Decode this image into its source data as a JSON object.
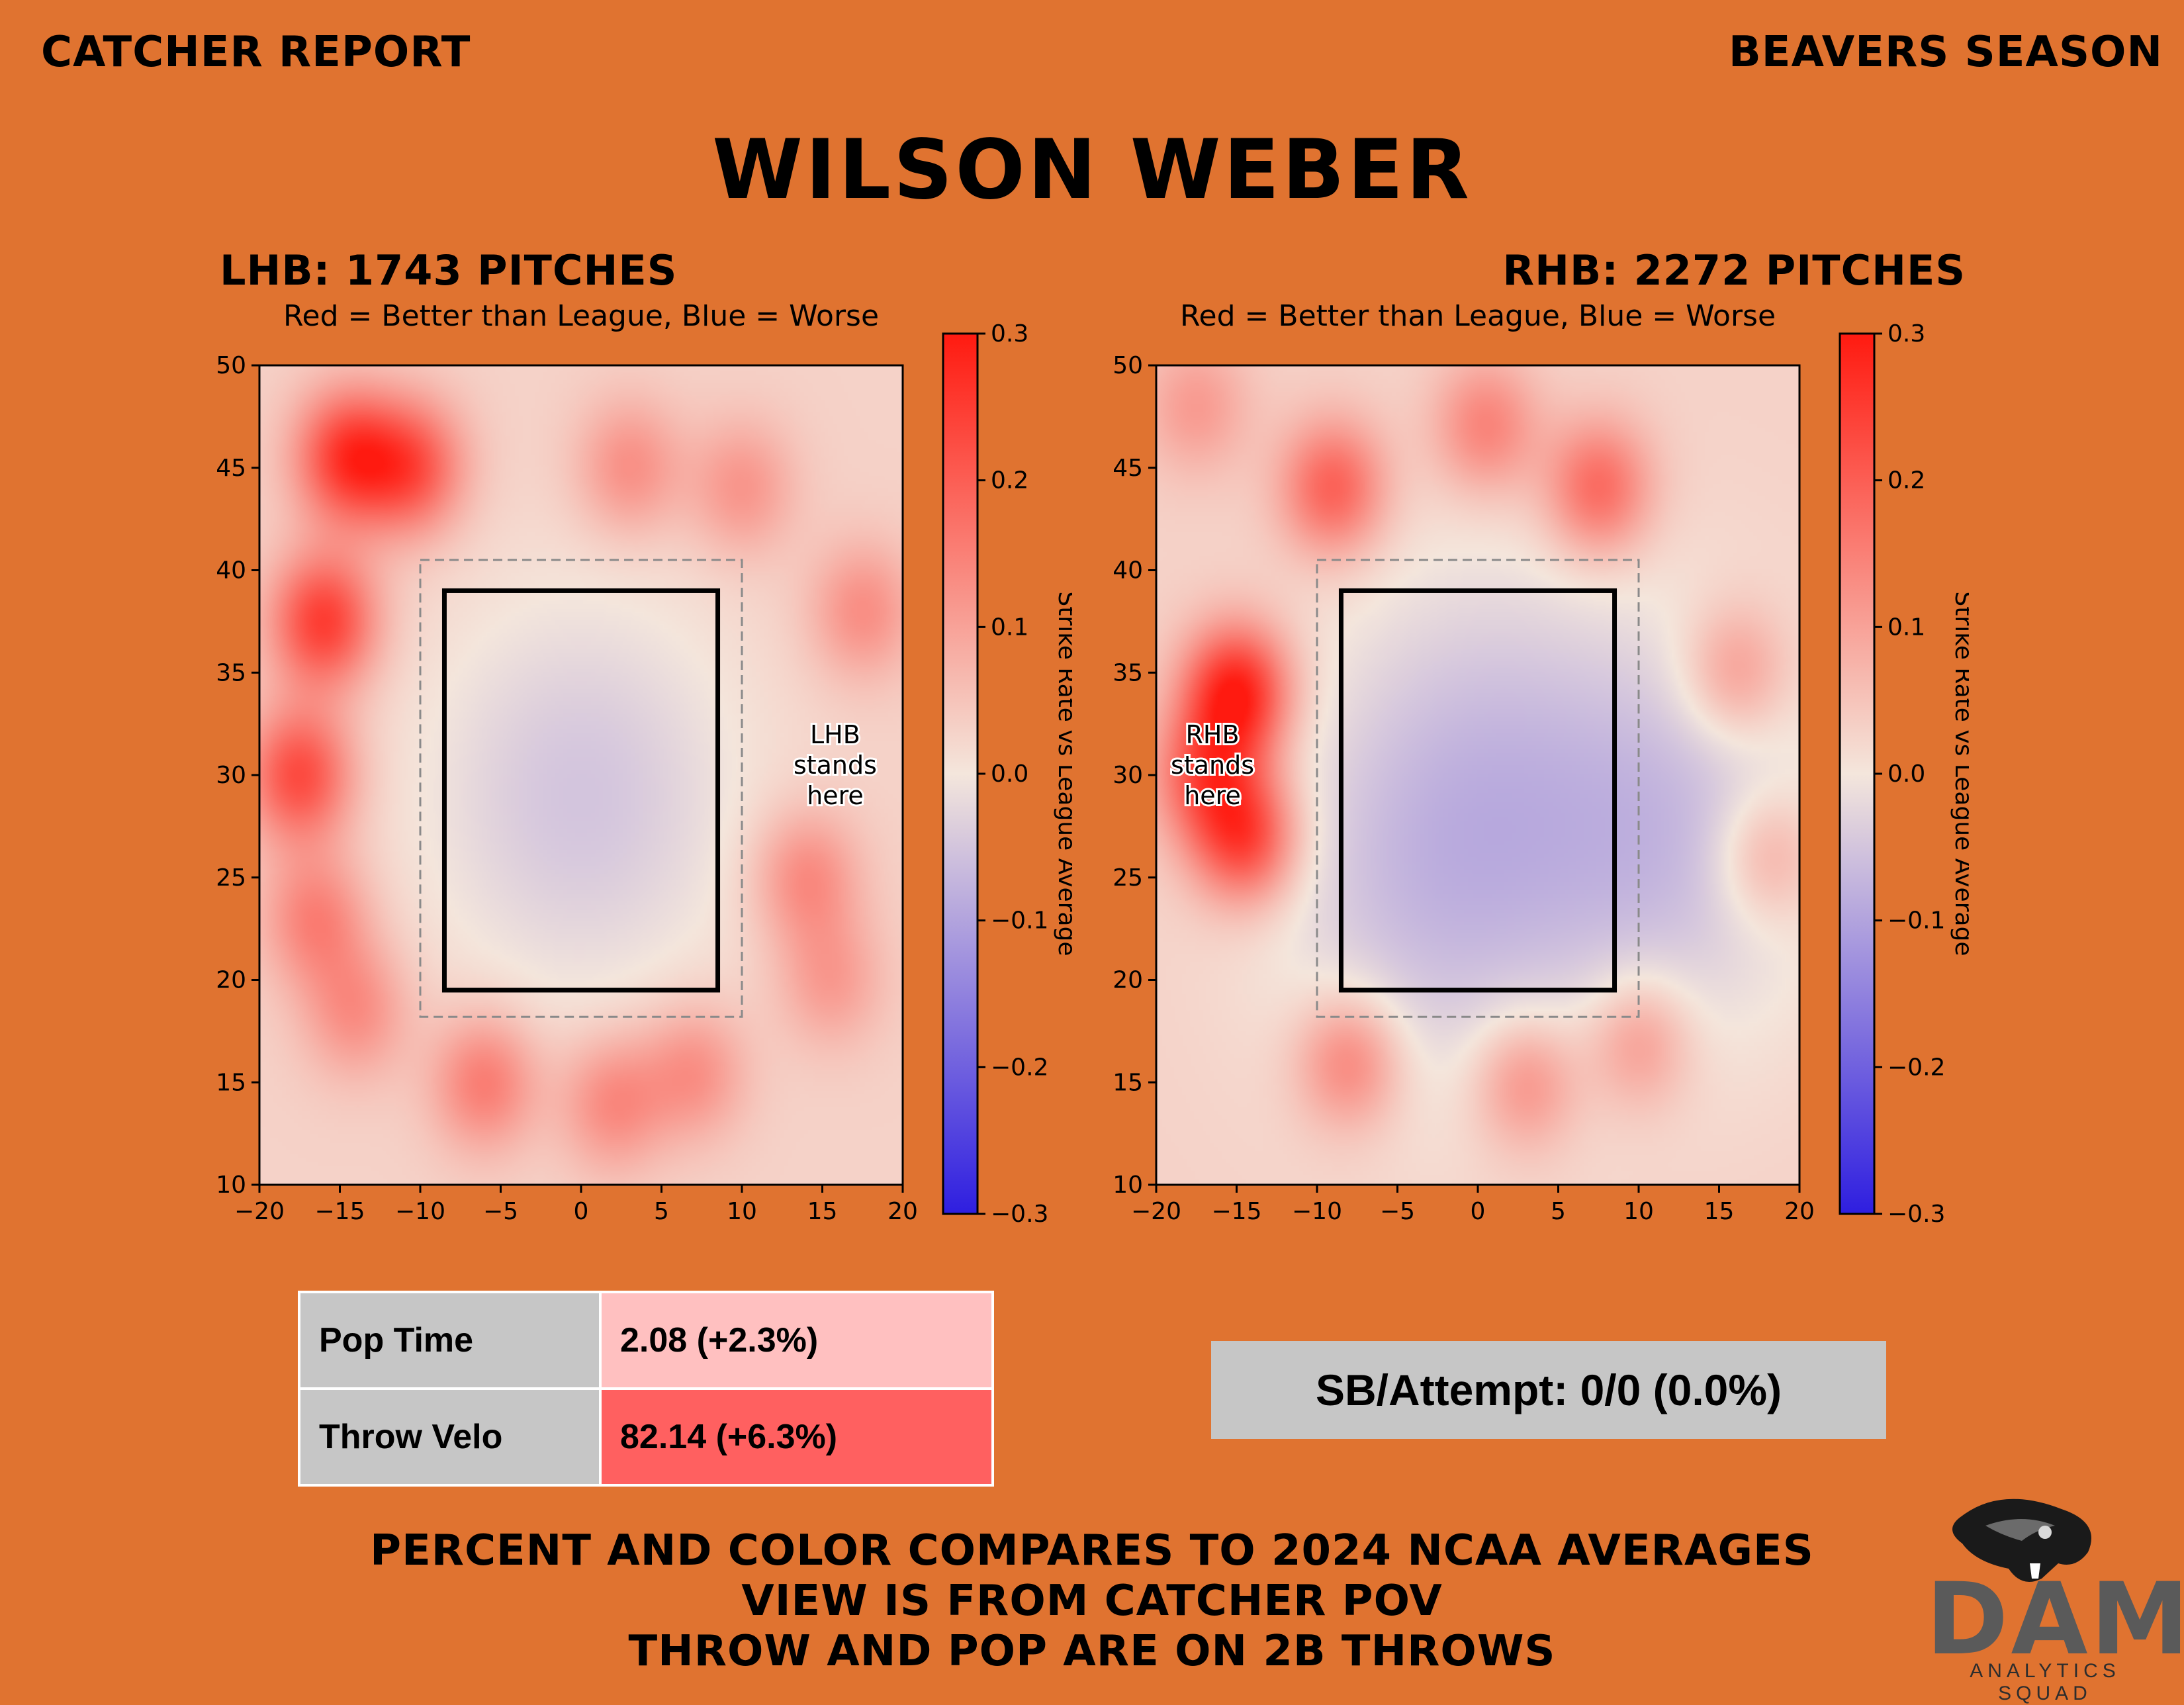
{
  "header": {
    "left": "CATCHER REPORT",
    "right": "BEAVERS SEASON"
  },
  "player_name": "WILSON WEBER",
  "left_panel": {
    "heading": "LHB: 1743 PITCHES"
  },
  "right_panel": {
    "heading": "RHB: 2272 PITCHES"
  },
  "chart_data": [
    {
      "type": "heatmap",
      "title": "Red = Better than League, Blue = Worse",
      "colorbar_label": "Strike Rate vs League Average",
      "xlim": [
        -20,
        20
      ],
      "ylim": [
        10,
        50
      ],
      "xticks": [
        -20,
        -15,
        -10,
        -5,
        0,
        5,
        10,
        15,
        20
      ],
      "yticks": [
        10,
        15,
        20,
        25,
        30,
        35,
        40,
        45,
        50
      ],
      "colorbar_range": [
        -0.3,
        0.3
      ],
      "colorbar_ticks": [
        "0.3",
        "0.2",
        "0.1",
        "0.0",
        "−0.1",
        "−0.2",
        "−0.3"
      ],
      "x_tick_labels": [
        "−20",
        "−15",
        "−10",
        "−5",
        "0",
        "5",
        "10",
        "15",
        "20"
      ],
      "colormap": {
        "high": "#ff1a10",
        "mid": "#f4e6dc",
        "low": "#2e1ee0"
      },
      "strike_zone": {
        "x": [
          -8.5,
          8.5
        ],
        "y": [
          19.5,
          39
        ]
      },
      "shadow_zone": {
        "x": [
          -10,
          10
        ],
        "y": [
          18.2,
          40.5
        ]
      },
      "annotation": {
        "text": [
          "LHB",
          "stands",
          "here"
        ],
        "x": 15.8,
        "y": 30
      },
      "blobs": [
        {
          "x": -14.5,
          "y": 45.5,
          "value": 0.22
        },
        {
          "x": -10.5,
          "y": 45,
          "value": 0.18
        },
        {
          "x": -16,
          "y": 37.5,
          "value": 0.22
        },
        {
          "x": -17.5,
          "y": 30,
          "value": 0.2
        },
        {
          "x": -16.5,
          "y": 23,
          "value": 0.12
        },
        {
          "x": -14,
          "y": 18.5,
          "value": 0.1
        },
        {
          "x": -6,
          "y": 15,
          "value": 0.13
        },
        {
          "x": 2,
          "y": 14,
          "value": 0.11
        },
        {
          "x": 7,
          "y": 15.5,
          "value": 0.1
        },
        {
          "x": 14,
          "y": 25,
          "value": 0.11
        },
        {
          "x": 15.5,
          "y": 20,
          "value": 0.08
        },
        {
          "x": 17.5,
          "y": 38,
          "value": 0.1
        },
        {
          "x": 3,
          "y": 45,
          "value": 0.1
        },
        {
          "x": 10,
          "y": 44,
          "value": 0.09
        },
        {
          "x": 0,
          "y": 29,
          "value": -0.08
        }
      ]
    },
    {
      "type": "heatmap",
      "title": "Red = Better than League, Blue = Worse",
      "colorbar_label": "Strike Rate vs League Average",
      "xlim": [
        -20,
        20
      ],
      "ylim": [
        10,
        50
      ],
      "xticks": [
        -20,
        -15,
        -10,
        -5,
        0,
        5,
        10,
        15,
        20
      ],
      "yticks": [
        10,
        15,
        20,
        25,
        30,
        35,
        40,
        45,
        50
      ],
      "colorbar_range": [
        -0.3,
        0.3
      ],
      "colorbar_ticks": [
        "0.3",
        "0.2",
        "0.1",
        "0.0",
        "−0.1",
        "−0.2",
        "−0.3"
      ],
      "x_tick_labels": [
        "−20",
        "−15",
        "−10",
        "−5",
        "0",
        "5",
        "10",
        "15",
        "20"
      ],
      "colormap": {
        "high": "#ff1a10",
        "mid": "#f4e6dc",
        "low": "#2e1ee0"
      },
      "strike_zone": {
        "x": [
          -8.5,
          8.5
        ],
        "y": [
          19.5,
          39
        ]
      },
      "shadow_zone": {
        "x": [
          -10,
          10
        ],
        "y": [
          18.2,
          40.5
        ]
      },
      "annotation": {
        "text": [
          "RHB",
          "stands",
          "here"
        ],
        "x": -16.5,
        "y": 30
      },
      "blobs": [
        {
          "x": -15,
          "y": 34,
          "value": 0.27
        },
        {
          "x": -14.5,
          "y": 27,
          "value": 0.22
        },
        {
          "x": -17,
          "y": 30,
          "value": 0.16
        },
        {
          "x": -9,
          "y": 44,
          "value": 0.17
        },
        {
          "x": 0.5,
          "y": 47,
          "value": 0.12
        },
        {
          "x": 7.5,
          "y": 44,
          "value": 0.16
        },
        {
          "x": -17.5,
          "y": 48,
          "value": 0.08
        },
        {
          "x": 16,
          "y": 35,
          "value": 0.1
        },
        {
          "x": 18,
          "y": 26,
          "value": 0.09
        },
        {
          "x": -8,
          "y": 16,
          "value": 0.13
        },
        {
          "x": 3,
          "y": 15,
          "value": 0.11
        },
        {
          "x": 10,
          "y": 17,
          "value": 0.1
        },
        {
          "x": 12,
          "y": 27,
          "value": -0.09
        },
        {
          "x": -3,
          "y": 24,
          "value": -0.08
        },
        {
          "x": 0,
          "y": 33,
          "value": -0.05
        }
      ]
    }
  ],
  "metrics": [
    {
      "label": "Pop Time",
      "value": "2.08 (+2.3%)",
      "color": "#ffc0c0"
    },
    {
      "label": "Throw Velo",
      "value": "82.14 (+6.3%)",
      "color": "#ff6060"
    }
  ],
  "sb_attempt": "SB/Attempt: 0/0 (0.0%)",
  "footer": [
    "PERCENT AND COLOR COMPARES TO 2024 NCAA AVERAGES",
    "VIEW IS FROM CATCHER POV",
    "THROW AND POP ARE ON 2B THROWS"
  ],
  "logo": {
    "name": "beaver-head-icon",
    "text": "DAM",
    "subtext": "ANALYTICS SQUAD"
  }
}
